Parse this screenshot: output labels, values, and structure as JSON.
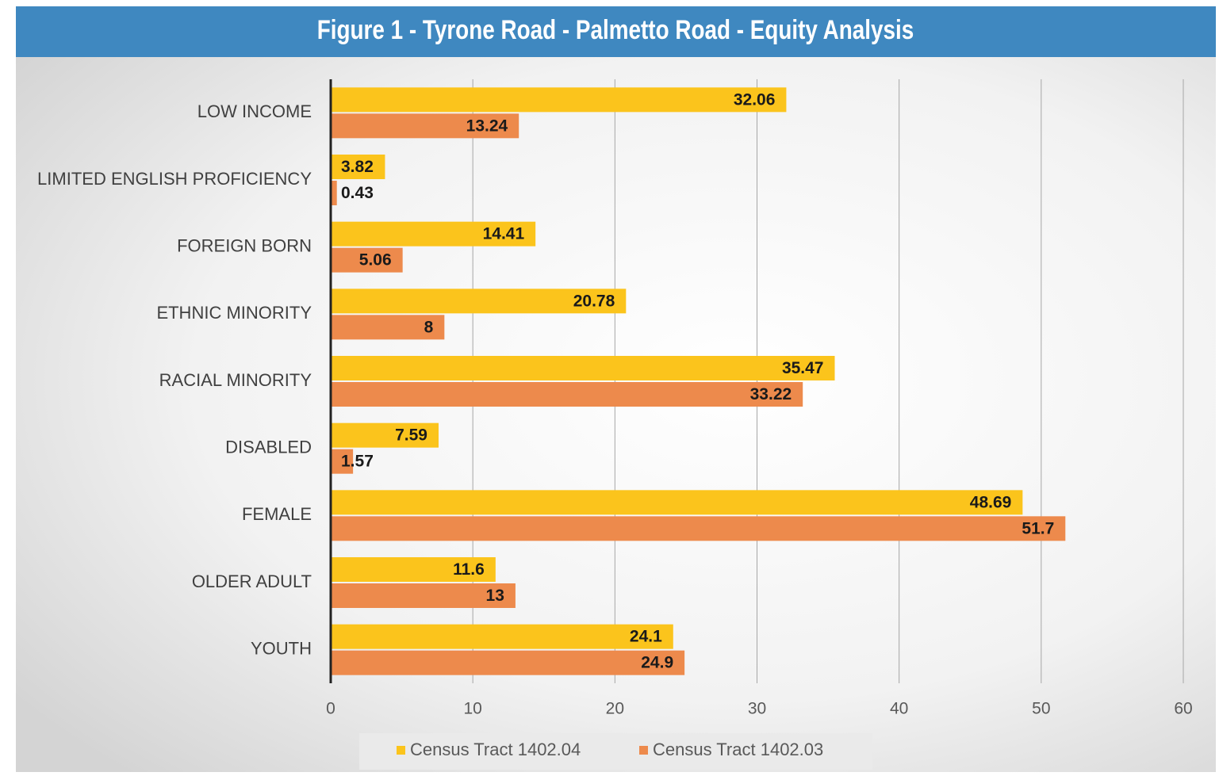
{
  "chart_data": {
    "type": "bar",
    "orientation": "horizontal",
    "title": "Figure 1 - Tyrone Road - Palmetto Road - Equity Analysis",
    "categories": [
      "LOW INCOME",
      "LIMITED ENGLISH PROFICIENCY",
      "FOREIGN BORN",
      "ETHNIC MINORITY",
      "RACIAL MINORITY",
      "DISABLED",
      "FEMALE",
      "OLDER ADULT",
      "YOUTH"
    ],
    "series": [
      {
        "name": "Census Tract 1402.04",
        "color": "#fbc41c",
        "values": [
          32.06,
          3.82,
          14.41,
          20.78,
          35.47,
          7.59,
          48.69,
          11.6,
          24.1
        ]
      },
      {
        "name": "Census Tract 1402.03",
        "color": "#ed8a4c",
        "values": [
          13.24,
          0.43,
          5.06,
          8,
          33.22,
          1.57,
          51.7,
          13,
          24.9
        ]
      }
    ],
    "xlim": [
      0,
      60
    ],
    "xticks": [
      0,
      10,
      20,
      30,
      40,
      50,
      60
    ],
    "grid": true,
    "legend": "bottom"
  }
}
